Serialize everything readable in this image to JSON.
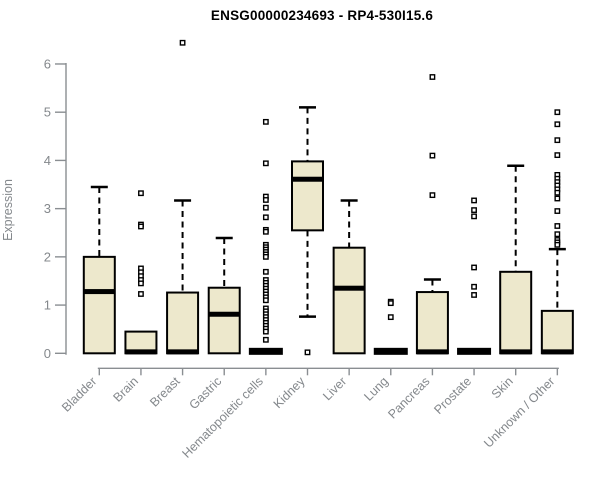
{
  "chart_data": {
    "type": "boxplot",
    "title": "ENSG00000234693 - RP4-530I15.6",
    "ylabel": "Expression",
    "xlabel": "",
    "ylim": [
      0,
      6
    ],
    "yticks": [
      0,
      1,
      2,
      3,
      4,
      5,
      6
    ],
    "grid": false,
    "legend": "none",
    "colors": {
      "box_fill": "#EDE8CC",
      "box_border": "#000000",
      "median": "#000000",
      "axis": "#8a8e92",
      "tick_text": "#84888c",
      "title_text": "#000000",
      "outlier_fill": "#ffffff"
    },
    "categories": [
      "Bladder",
      "Brain",
      "Breast",
      "Gastric",
      "Hematopoietic cells",
      "Kidney",
      "Liver",
      "Lung",
      "Pancreas",
      "Prostate",
      "Skin",
      "Unknown / Other"
    ],
    "boxes": [
      {
        "label": "Bladder",
        "whisker_low": 0,
        "q1": 0,
        "median": 1.28,
        "q3": 2.0,
        "whisker_high": 3.45,
        "outliers": []
      },
      {
        "label": "Brain",
        "whisker_low": 0,
        "q1": 0,
        "median": 0.03,
        "q3": 0.45,
        "whisker_high": 0.45,
        "outliers": [
          3.32,
          2.67,
          2.63,
          1.76,
          1.68,
          1.6,
          1.52,
          1.45,
          1.23
        ]
      },
      {
        "label": "Breast",
        "whisker_low": 0,
        "q1": 0,
        "median": 0.03,
        "q3": 1.26,
        "whisker_high": 3.17,
        "outliers": [
          6.44
        ]
      },
      {
        "label": "Gastric",
        "whisker_low": 0,
        "q1": 0,
        "median": 0.81,
        "q3": 1.36,
        "whisker_high": 2.39,
        "outliers": []
      },
      {
        "label": "Hematopoietic cells",
        "whisker_low": 0,
        "q1": 0,
        "median": 0.02,
        "q3": 0.05,
        "whisker_high": 0.05,
        "outliers": [
          4.8,
          3.94,
          3.25,
          3.18,
          3.02,
          2.82,
          2.56,
          2.52,
          2.25,
          2.2,
          2.15,
          2.1,
          2.05,
          2.0,
          1.69,
          1.52,
          1.46,
          1.4,
          1.34,
          1.28,
          1.22,
          1.16,
          1.1,
          0.93,
          0.87,
          0.81,
          0.75,
          0.69,
          0.63,
          0.57,
          0.51,
          0.45,
          0.28
        ]
      },
      {
        "label": "Kidney",
        "whisker_low": 0.76,
        "q1": 2.55,
        "median": 3.61,
        "q3": 3.98,
        "whisker_high": 5.1,
        "outliers": [
          0.02
        ]
      },
      {
        "label": "Liver",
        "whisker_low": 0,
        "q1": 0,
        "median": 1.35,
        "q3": 2.19,
        "whisker_high": 3.17,
        "outliers": []
      },
      {
        "label": "Lung",
        "whisker_low": 0,
        "q1": 0,
        "median": 0.02,
        "q3": 0.05,
        "whisker_high": 0.05,
        "outliers": [
          1.07,
          1.04,
          0.75
        ]
      },
      {
        "label": "Pancreas",
        "whisker_low": 0,
        "q1": 0,
        "median": 0.03,
        "q3": 1.27,
        "whisker_high": 1.53,
        "outliers": [
          5.73,
          4.1,
          3.28
        ]
      },
      {
        "label": "Prostate",
        "whisker_low": 0,
        "q1": 0,
        "median": 0.02,
        "q3": 0.05,
        "whisker_high": 0.05,
        "outliers": [
          3.17,
          2.97,
          2.84,
          1.78,
          1.38,
          1.21
        ]
      },
      {
        "label": "Skin",
        "whisker_low": 0,
        "q1": 0,
        "median": 0.03,
        "q3": 1.69,
        "whisker_high": 3.89,
        "outliers": []
      },
      {
        "label": "Unknown / Other",
        "whisker_low": 0,
        "q1": 0,
        "median": 0.03,
        "q3": 0.88,
        "whisker_high": 2.16,
        "outliers": [
          5.0,
          4.75,
          4.42,
          4.11,
          3.7,
          3.62,
          3.55,
          3.48,
          3.4,
          3.33,
          3.21,
          2.95,
          2.64,
          2.47,
          2.35,
          2.3,
          2.25
        ]
      }
    ]
  }
}
